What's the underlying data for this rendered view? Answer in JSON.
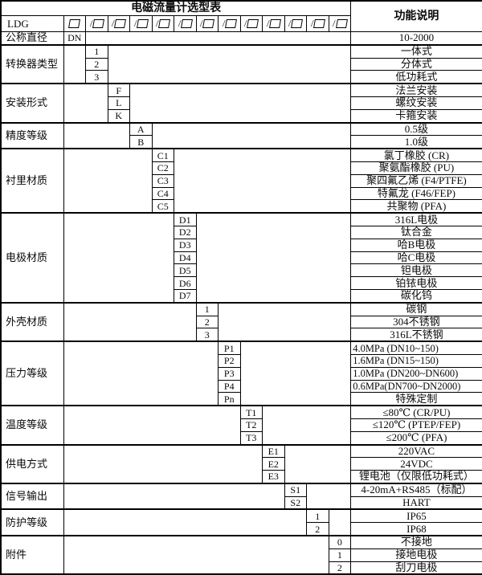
{
  "title": "电磁流量计选型表",
  "function_header": "功能说明",
  "model": {
    "prefix": "LDG",
    "box_symbol": "□",
    "slash_symbol": "/"
  },
  "groups": [
    {
      "label": "公称直径",
      "col": 1,
      "items": [
        {
          "code": "DN",
          "desc": "10-2000"
        }
      ]
    },
    {
      "label": "转换器类型",
      "col": 2,
      "items": [
        {
          "code": "1",
          "desc": "一体式"
        },
        {
          "code": "2",
          "desc": "分体式"
        },
        {
          "code": "3",
          "desc": "低功耗式"
        }
      ]
    },
    {
      "label": "安装形式",
      "col": 3,
      "items": [
        {
          "code": "F",
          "desc": "法兰安装"
        },
        {
          "code": "L",
          "desc": "螺纹安装"
        },
        {
          "code": "K",
          "desc": "卡箍安装"
        }
      ]
    },
    {
      "label": "精度等级",
      "col": 4,
      "items": [
        {
          "code": "A",
          "desc": "0.5级"
        },
        {
          "code": "B",
          "desc": "1.0级"
        }
      ]
    },
    {
      "label": "衬里材质",
      "col": 5,
      "items": [
        {
          "code": "C1",
          "desc": "氯丁橡胶 (CR)"
        },
        {
          "code": "C2",
          "desc": "聚氨酯橡胶 (PU)"
        },
        {
          "code": "C3",
          "desc": "聚四氟乙烯 (F4/PTFE)"
        },
        {
          "code": "C4",
          "desc": "特氟龙 (F46/FEP)"
        },
        {
          "code": "C5",
          "desc": "共聚物 (PFA)"
        }
      ]
    },
    {
      "label": "电极材质",
      "col": 6,
      "items": [
        {
          "code": "D1",
          "desc": "316L电极"
        },
        {
          "code": "D2",
          "desc": "钛合金"
        },
        {
          "code": "D3",
          "desc": "哈B电极"
        },
        {
          "code": "D4",
          "desc": "哈C电极"
        },
        {
          "code": "D5",
          "desc": "钽电极"
        },
        {
          "code": "D6",
          "desc": "铂铱电极"
        },
        {
          "code": "D7",
          "desc": "碳化钨"
        }
      ]
    },
    {
      "label": "外壳材质",
      "col": 7,
      "items": [
        {
          "code": "1",
          "desc": "碳钢"
        },
        {
          "code": "2",
          "desc": "304不锈钢"
        },
        {
          "code": "3",
          "desc": "316L不锈钢"
        }
      ]
    },
    {
      "label": "压力等级",
      "col": 8,
      "items": [
        {
          "code": "P1",
          "desc": "4.0MPa (DN10~150)",
          "align": "left"
        },
        {
          "code": "P2",
          "desc": "1.6MPa (DN15~150)",
          "align": "left"
        },
        {
          "code": "P3",
          "desc": "1.0MPa (DN200~DN600)",
          "align": "left"
        },
        {
          "code": "P4",
          "desc": "0.6MPa(DN700~DN2000)",
          "align": "left"
        },
        {
          "code": "Pn",
          "desc": "特殊定制"
        }
      ]
    },
    {
      "label": "温度等级",
      "col": 9,
      "items": [
        {
          "code": "T1",
          "desc": "≤80℃ (CR/PU)"
        },
        {
          "code": "T2",
          "desc": "≤120℃ (PTEP/FEP)"
        },
        {
          "code": "T3",
          "desc": "≤200℃ (PFA)"
        }
      ]
    },
    {
      "label": "供电方式",
      "col": 10,
      "items": [
        {
          "code": "E1",
          "desc": "220VAC"
        },
        {
          "code": "E2",
          "desc": "24VDC"
        },
        {
          "code": "E3",
          "desc": "锂电池（仅限低功耗式）"
        }
      ]
    },
    {
      "label": "信号输出",
      "col": 11,
      "items": [
        {
          "code": "S1",
          "desc": "4-20mA+RS485（标配）"
        },
        {
          "code": "S2",
          "desc": "HART"
        }
      ]
    },
    {
      "label": "防护等级",
      "col": 12,
      "items": [
        {
          "code": "1",
          "desc": "IP65"
        },
        {
          "code": "2",
          "desc": "IP68"
        }
      ]
    },
    {
      "label": "附件",
      "col": 13,
      "items": [
        {
          "code": "0",
          "desc": "不接地"
        },
        {
          "code": "1",
          "desc": "接地电极"
        },
        {
          "code": "2",
          "desc": "刮刀电极"
        }
      ]
    }
  ]
}
